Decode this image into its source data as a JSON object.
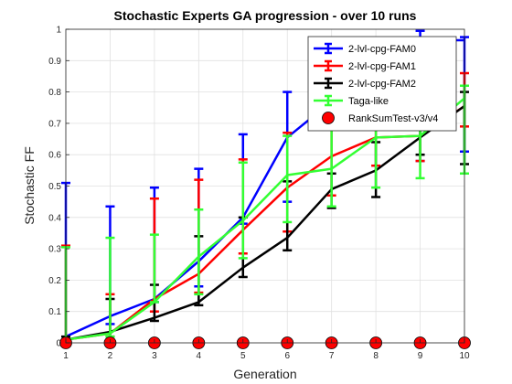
{
  "chart_data": {
    "type": "line",
    "title": "Stochastic Experts GA progression - over 10 runs",
    "xlabel": "Generation",
    "ylabel": "Stochastic FF",
    "xlim": [
      1,
      10
    ],
    "ylim": [
      0,
      1
    ],
    "x": [
      1,
      2,
      3,
      4,
      5,
      6,
      7,
      8,
      9,
      10
    ],
    "xticks": [
      "1",
      "2",
      "3",
      "4",
      "5",
      "6",
      "7",
      "8",
      "9",
      "10"
    ],
    "yticks": [
      "0",
      "0.1",
      "0.2",
      "0.3",
      "0.4",
      "0.5",
      "0.6",
      "0.7",
      "0.8",
      "0.9",
      "1"
    ],
    "grid": true,
    "legend_position": "top-right",
    "series": [
      {
        "name": "2-lvl-cpg-FAM0",
        "color": "#0000ff",
        "values": [
          0.02,
          0.085,
          0.14,
          0.26,
          0.4,
          0.655,
          0.77,
          0.8,
          0.965,
          0.965
        ],
        "upper": [
          0.51,
          0.435,
          0.495,
          0.555,
          0.665,
          0.8,
          0.78,
          0.85,
          0.995,
          0.975
        ],
        "lower": [
          0.01,
          0.06,
          0.13,
          0.18,
          0.38,
          0.45,
          0.7,
          0.75,
          0.58,
          0.61
        ]
      },
      {
        "name": "2-lvl-cpg-FAM1",
        "color": "#ff0000",
        "values": [
          0.01,
          0.03,
          0.14,
          0.22,
          0.36,
          0.495,
          0.595,
          0.655,
          0.66,
          0.755
        ],
        "upper": [
          0.31,
          0.155,
          0.46,
          0.52,
          0.585,
          0.67,
          0.7,
          0.73,
          0.75,
          0.86
        ],
        "lower": [
          0.0,
          0.01,
          0.1,
          0.16,
          0.285,
          0.355,
          0.47,
          0.565,
          0.58,
          0.69
        ]
      },
      {
        "name": "2-lvl-cpg-FAM2",
        "color": "#000000",
        "values": [
          0.01,
          0.035,
          0.08,
          0.13,
          0.24,
          0.335,
          0.49,
          0.55,
          0.655,
          0.755
        ],
        "upper": [
          0.02,
          0.14,
          0.185,
          0.34,
          0.4,
          0.515,
          0.54,
          0.64,
          0.75,
          0.8
        ],
        "lower": [
          0.0,
          0.02,
          0.07,
          0.12,
          0.21,
          0.295,
          0.43,
          0.465,
          0.6,
          0.57
        ]
      },
      {
        "name": "Taga-like",
        "color": "#33ff33",
        "values": [
          0.01,
          0.03,
          0.13,
          0.275,
          0.39,
          0.535,
          0.555,
          0.655,
          0.66,
          0.78
        ],
        "upper": [
          0.305,
          0.335,
          0.345,
          0.425,
          0.575,
          0.66,
          0.73,
          0.76,
          0.8,
          0.82
        ],
        "lower": [
          0.0,
          0.02,
          0.13,
          0.155,
          0.27,
          0.385,
          0.435,
          0.495,
          0.525,
          0.54
        ]
      },
      {
        "name": "RankSumTest-v3/v4",
        "color": "#ff0000",
        "marker": "circle",
        "values": [
          0,
          0,
          0,
          0,
          0,
          0,
          0,
          0,
          0,
          0
        ]
      }
    ]
  }
}
